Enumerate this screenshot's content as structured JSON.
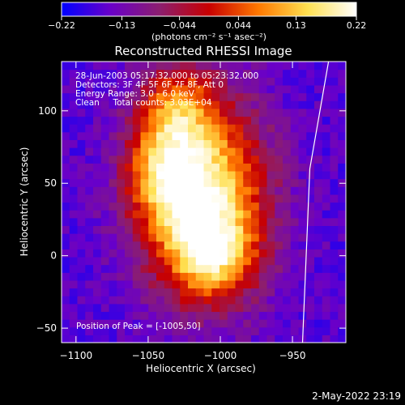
{
  "chart_data": {
    "type": "heatmap",
    "title": "Reconstructed RHESSI Image",
    "xlabel": "Heliocentric X (arcsec)",
    "ylabel": "Heliocentric Y (arcsec)",
    "xlim": [
      -1110,
      -913
    ],
    "ylim": [
      -60,
      134
    ],
    "x_ticks": [
      {
        "value": -1100,
        "label": "−1100"
      },
      {
        "value": -1050,
        "label": "−1050"
      },
      {
        "value": -1000,
        "label": "−1000"
      },
      {
        "value": -950,
        "label": "−950"
      }
    ],
    "y_ticks": [
      {
        "value": 100,
        "label": "100"
      },
      {
        "value": 50,
        "label": "50"
      },
      {
        "value": 0,
        "label": "0"
      },
      {
        "value": -50,
        "label": "−50"
      }
    ],
    "colorbar": {
      "range": [
        -0.22,
        0.22
      ],
      "ticks": [
        {
          "value": -0.22,
          "label": "−0.22"
        },
        {
          "value": -0.13,
          "label": "−0.13"
        },
        {
          "value": -0.044,
          "label": "−0.044"
        },
        {
          "value": 0.044,
          "label": "0.044"
        },
        {
          "value": 0.13,
          "label": "0.13"
        },
        {
          "value": 0.22,
          "label": "0.22"
        }
      ],
      "unit_label": "(photons cm⁻² s⁻¹ asec⁻²)",
      "colors": [
        "#0000ff",
        "#6a00c8",
        "#8c1e6e",
        "#c80000",
        "#ff7800",
        "#ffe050",
        "#ffffff"
      ]
    },
    "annotations": [
      "28-Jun-2003 05:17:32.000 to 05:23:32.000",
      "Detectors: 3F 4F 5F 6F 7F 8F, Att 0",
      "Energy Range: 3.0 - 6.0 keV",
      "Clean     Total counts: 3.03E+04"
    ],
    "peak_label": "Position of Peak = [-1005,50]",
    "source_blobs": [
      {
        "x": -1012,
        "y": 40,
        "sx": 30,
        "sy": 45,
        "amp": 0.2
      },
      {
        "x": -1040,
        "y": 60,
        "sx": 18,
        "sy": 25,
        "amp": 0.05
      },
      {
        "x": -1005,
        "y": 0,
        "sx": 20,
        "sy": 20,
        "amp": 0.05
      },
      {
        "x": -1030,
        "y": 105,
        "sx": 18,
        "sy": 20,
        "amp": 0.04
      }
    ],
    "background_value": -0.16,
    "limb_line": [
      [
        -943,
        -60
      ],
      [
        -938,
        60
      ],
      [
        -925,
        134
      ]
    ]
  },
  "footer": {
    "timestamp": "2-May-2022 23:19"
  }
}
